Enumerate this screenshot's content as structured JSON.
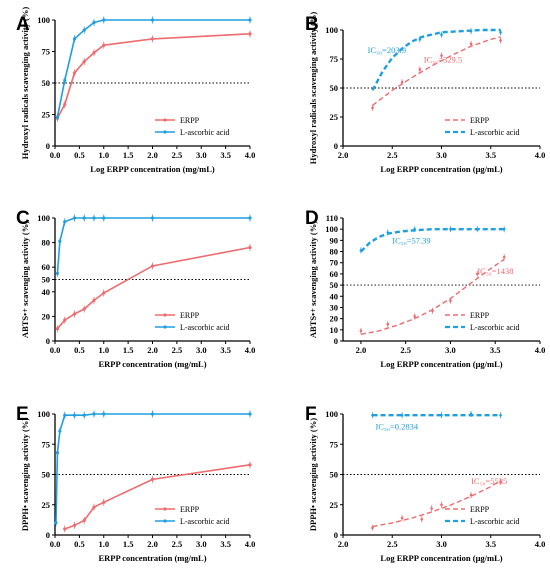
{
  "colors": {
    "erpp": "#ee6b6e",
    "ascorbic": "#1f9fe0",
    "axis": "#000000",
    "ref": "#000000"
  },
  "chart_data": [
    {
      "panel": "A",
      "type": "line",
      "xlabel": "Log ERPP concentration (mg/mL)",
      "ylabel": "Hydroxyl radicals scavenging activity (%)",
      "xlim": [
        0,
        4
      ],
      "ylim": [
        0,
        100
      ],
      "xticks": [
        "0.0",
        "0.5",
        "1.0",
        "1.5",
        "2.0",
        "2.5",
        "3.0",
        "3.5",
        "4.0"
      ],
      "yticks": [
        "0",
        "25",
        "50",
        "75",
        "100"
      ],
      "ref_y": 50,
      "series": [
        {
          "name": "ERPP",
          "x": [
            0.05,
            0.2,
            0.4,
            0.6,
            0.8,
            1.0,
            2.0,
            4.0
          ],
          "y": [
            22,
            33,
            58,
            67,
            74,
            80,
            85,
            89
          ]
        },
        {
          "name": "L-ascorbic acid",
          "x": [
            0.05,
            0.2,
            0.4,
            0.6,
            0.8,
            1.0,
            2.0,
            4.0
          ],
          "y": [
            23,
            52,
            85,
            92,
            98,
            100,
            100,
            100
          ]
        }
      ],
      "legend": "bottom-right"
    },
    {
      "panel": "B",
      "type": "scatter",
      "xlabel": "Log ERPP concentration (μg/mL)",
      "ylabel": "Hydroxyl radicals scavenging activity (%)",
      "xlim": [
        2.0,
        4.0
      ],
      "ylim": [
        0,
        100
      ],
      "xticks": [
        "2.0",
        "2.5",
        "3.0",
        "3.5",
        "4.0"
      ],
      "yticks": [
        "0",
        "25",
        "50",
        "75",
        "100"
      ],
      "ref_y": 50,
      "annotations": [
        {
          "text": "IC₅₀=203.9",
          "series": "L-ascorbic acid",
          "x": 2.25,
          "y": 80
        },
        {
          "text": "IC₅₀=329.5",
          "series": "ERPP",
          "x": 2.82,
          "y": 72
        }
      ],
      "series": [
        {
          "name": "ERPP",
          "fit": "dashed",
          "points_x": [
            2.3,
            2.6,
            2.78,
            3.0,
            3.3,
            3.6
          ],
          "points_y": [
            33,
            55,
            66,
            78,
            88,
            91
          ],
          "fit_x": [
            2.3,
            2.5,
            2.7,
            2.9,
            3.1,
            3.3,
            3.5,
            3.6
          ],
          "fit_y": [
            35,
            48,
            59,
            69,
            78,
            86,
            92,
            94
          ]
        },
        {
          "name": "L-ascorbic acid",
          "fit": "dashed",
          "points_x": [
            2.78,
            3.0,
            3.3,
            3.6
          ],
          "points_y": [
            92,
            96,
            99,
            98
          ],
          "fit_x": [
            2.3,
            2.4,
            2.5,
            2.6,
            2.7,
            2.8,
            2.9,
            3.0,
            3.2,
            3.4,
            3.6
          ],
          "fit_y": [
            48,
            64,
            76,
            84,
            90,
            94,
            96,
            98,
            99,
            100,
            100
          ]
        }
      ],
      "legend": "bottom-right"
    },
    {
      "panel": "C",
      "type": "line",
      "xlabel": "ERPP concentration (mg/mL)",
      "ylabel": "ABTS•+ scavenging activity (%)",
      "xlim": [
        0,
        4
      ],
      "ylim": [
        0,
        100
      ],
      "xticks": [
        "0.0",
        "0.5",
        "1.0",
        "1.5",
        "2.0",
        "2.5",
        "3.0",
        "3.5",
        "4.0"
      ],
      "yticks": [
        "0",
        "20",
        "40",
        "50",
        "60",
        "80",
        "100"
      ],
      "ref_y": 50,
      "series": [
        {
          "name": "ERPP",
          "x": [
            0.05,
            0.2,
            0.4,
            0.6,
            0.8,
            1.0,
            2.0,
            4.0
          ],
          "y": [
            10,
            17,
            22,
            26,
            33,
            39,
            61,
            76
          ]
        },
        {
          "name": "L-ascorbic acid",
          "x": [
            0.05,
            0.1,
            0.2,
            0.4,
            0.6,
            0.8,
            1.0,
            2.0,
            4.0
          ],
          "y": [
            55,
            81,
            97,
            100,
            100,
            100,
            100,
            100,
            100
          ]
        }
      ],
      "legend": "bottom-right"
    },
    {
      "panel": "D",
      "type": "scatter",
      "xlabel": "Log ERPP concentration (μg/mL)",
      "ylabel": "ABTS•+ scavenging activity (%)",
      "xlim": [
        1.8,
        4.0
      ],
      "ylim": [
        0,
        110
      ],
      "xticks": [
        "2.0",
        "2.5",
        "3.0",
        "3.5",
        "4.0"
      ],
      "yticks": [
        "0",
        "10",
        "20",
        "30",
        "40",
        "50",
        "60",
        "70",
        "80",
        "90",
        "100",
        "110"
      ],
      "ref_y": 50,
      "annotations": [
        {
          "text": "IC₅₀=57.39",
          "series": "L-ascorbic acid",
          "x": 2.35,
          "y": 87
        },
        {
          "text": "IC₅₀=1438",
          "series": "ERPP",
          "x": 3.3,
          "y": 60
        }
      ],
      "series": [
        {
          "name": "ERPP",
          "fit": "dashed",
          "points_x": [
            2.0,
            2.3,
            2.6,
            2.8,
            3.0,
            3.3,
            3.6
          ],
          "points_y": [
            9,
            15,
            22,
            27,
            36,
            60,
            75
          ],
          "fit_x": [
            2.0,
            2.2,
            2.4,
            2.6,
            2.8,
            3.0,
            3.2,
            3.4,
            3.6
          ],
          "fit_y": [
            6,
            9,
            14,
            20,
            28,
            38,
            50,
            62,
            73
          ]
        },
        {
          "name": "L-ascorbic acid",
          "fit": "dashed",
          "points_x": [
            2.0,
            2.3,
            2.6,
            3.0,
            3.3,
            3.6
          ],
          "points_y": [
            81,
            97,
            100,
            100,
            100,
            100
          ],
          "fit_x": [
            2.0,
            2.1,
            2.2,
            2.3,
            2.45,
            2.6,
            2.8,
            3.0,
            3.3,
            3.6
          ],
          "fit_y": [
            80,
            88,
            93,
            96,
            98,
            99,
            100,
            100,
            100,
            100
          ]
        }
      ],
      "legend": "bottom-right"
    },
    {
      "panel": "E",
      "type": "line",
      "xlabel": "ERPP concentration (mg/mL)",
      "ylabel": "DPPH• scavenging activity (%)",
      "xlim": [
        0,
        4
      ],
      "ylim": [
        0,
        100
      ],
      "xticks": [
        "0.0",
        "0.5",
        "1.0",
        "1.5",
        "2.0",
        "2.5",
        "3.0",
        "3.5",
        "4.0"
      ],
      "yticks": [
        "0",
        "25",
        "50",
        "75",
        "100"
      ],
      "ref_y": 50,
      "series": [
        {
          "name": "ERPP",
          "x": [
            0.2,
            0.4,
            0.6,
            0.8,
            1.0,
            2.0,
            4.0
          ],
          "y": [
            5,
            8,
            12,
            23,
            27,
            46,
            58
          ]
        },
        {
          "name": "L-ascorbic acid",
          "x": [
            0.02,
            0.05,
            0.1,
            0.2,
            0.4,
            0.6,
            0.8,
            1.0,
            2.0,
            4.0
          ],
          "y": [
            10,
            68,
            86,
            99,
            99,
            99,
            100,
            100,
            100,
            100
          ]
        }
      ],
      "legend": "bottom-right"
    },
    {
      "panel": "F",
      "type": "scatter",
      "xlabel": "Log ERPP concentration (μg/mL)",
      "ylabel": "DPPH• scavenging activity (%)",
      "xlim": [
        2.0,
        4.0
      ],
      "ylim": [
        0,
        100
      ],
      "xticks": [
        "2.0",
        "2.5",
        "3.0",
        "3.5",
        "4.0"
      ],
      "yticks": [
        "0",
        "25",
        "50",
        "75",
        "100"
      ],
      "ref_y": 50,
      "annotations": [
        {
          "text": "IC₅₀=0.2834",
          "series": "L-ascorbic acid",
          "x": 2.33,
          "y": 87
        },
        {
          "text": "IC₅₀=5535",
          "series": "ERPP",
          "x": 3.3,
          "y": 42
        }
      ],
      "series": [
        {
          "name": "ERPP",
          "fit": "dashed",
          "points_x": [
            2.3,
            2.6,
            2.8,
            2.9,
            3.0,
            3.3,
            3.6
          ],
          "points_y": [
            6,
            14,
            13,
            22,
            25,
            33,
            44
          ],
          "fit_x": [
            2.3,
            2.5,
            2.7,
            2.9,
            3.1,
            3.3,
            3.5,
            3.6
          ],
          "fit_y": [
            7,
            10,
            14,
            19,
            25,
            32,
            40,
            45
          ]
        },
        {
          "name": "L-ascorbic acid",
          "fit": "dashed",
          "points_x": [
            2.3,
            2.6,
            3.0,
            3.3,
            3.6
          ],
          "points_y": [
            99,
            99,
            99,
            100,
            99
          ],
          "fit_x": [
            2.3,
            2.6,
            3.0,
            3.3,
            3.6
          ],
          "fit_y": [
            99,
            99,
            99,
            99,
            99
          ]
        }
      ],
      "legend": "bottom-right"
    }
  ]
}
